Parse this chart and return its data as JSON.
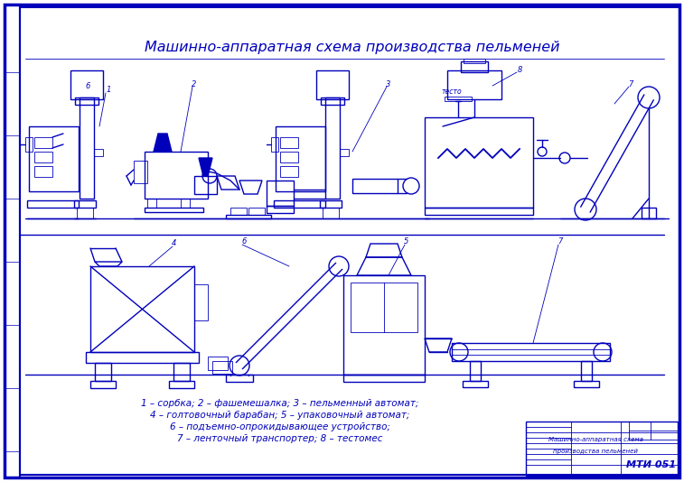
{
  "title": "Машинно-аппаратная схема производства пельменей",
  "bg_color": "#ffffff",
  "draw_color": "#0000bb",
  "legend_lines": [
    "1 – сорбка; 2 – фашемешалка; 3 – пельменный автомат;",
    "4 – голтовочный барабан; 5 – упаковочный автомат;",
    "6 – подъемно-опрокидывающее устройство;",
    "7 – ленточный транспортер; 8 – тестомес"
  ],
  "stamp_text1": "Машинно-аппаратная схема",
  "stamp_text2": "производства пельменей",
  "stamp_number": "МТИ 051"
}
